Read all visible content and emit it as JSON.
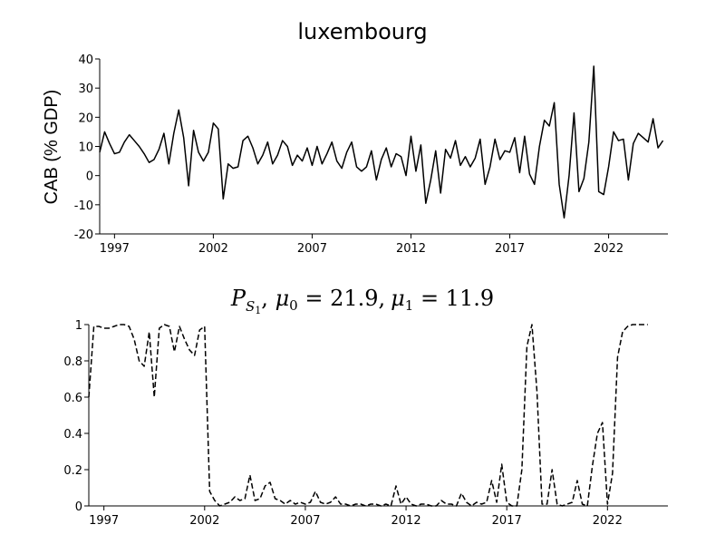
{
  "chart_data": [
    {
      "type": "line",
      "title": "luxembourg",
      "xlabel": "",
      "ylabel": "CAB (% GDP)",
      "xlim": [
        1996.25,
        2025.0
      ],
      "ylim": [
        -20,
        40
      ],
      "xticks": [
        1997,
        2002,
        2007,
        2012,
        2017,
        2022
      ],
      "yticks": [
        -20,
        -10,
        0,
        10,
        20,
        30,
        40
      ],
      "grid": false,
      "series": [
        {
          "style": "solid",
          "x_start": 1996.25,
          "x_step": 0.25,
          "values": [
            8,
            15,
            11,
            7.5,
            8,
            11.5,
            14,
            12,
            10,
            7.5,
            4.5,
            5.5,
            9,
            14.5,
            4,
            14.5,
            22.5,
            13,
            -3.5,
            15.5,
            8,
            5,
            8,
            18,
            16,
            -8,
            4,
            2.5,
            3,
            12,
            13.5,
            9.5,
            4,
            7,
            11.5,
            4,
            7,
            12,
            10,
            3.5,
            7,
            5,
            9.5,
            3.5,
            10,
            4,
            7.5,
            11.5,
            5,
            2.5,
            8,
            11.5,
            3,
            1.5,
            3,
            8.5,
            -1.5,
            5.5,
            9.5,
            3,
            7.5,
            6.5,
            0,
            13.5,
            1.5,
            10.5,
            -9.5,
            -1.5,
            8.5,
            -6,
            9,
            6,
            12,
            3.5,
            6.5,
            3,
            6,
            12.5,
            -3,
            3,
            12.5,
            5.5,
            8.5,
            8,
            13,
            1,
            13.5,
            0.5,
            -3,
            10,
            19,
            17,
            25,
            -3,
            -14.5,
            0,
            21.5,
            -5.5,
            -1,
            11.5,
            37.5,
            -5.5,
            -6.5,
            3,
            15,
            12,
            12.5,
            -1.5,
            11,
            14.5,
            13,
            11.5,
            19.5,
            9.5,
            12
          ]
        }
      ]
    },
    {
      "type": "line",
      "title": "P_{S_1}, μ_0 = 21.9, μ_1 = 11.9",
      "title_parts": {
        "p": "P",
        "sub_s": "S",
        "sub_1": "1",
        "mu0_sym": "μ",
        "mu0_sub": "0",
        "mu0_val": " = 21.9,",
        "mu1_sym": "μ",
        "mu1_sub": "1",
        "mu1_val": " = 11.9"
      },
      "xlabel": "",
      "ylabel": "",
      "xlim": [
        1996.25,
        2025.0
      ],
      "ylim": [
        0,
        1
      ],
      "xticks": [
        1997,
        2002,
        2007,
        2012,
        2017,
        2022
      ],
      "yticks": [
        0,
        0.2,
        0.4,
        0.6,
        0.8,
        1
      ],
      "ytick_labels": [
        "0",
        "0.2",
        "0.4",
        "0.6",
        "0.8",
        "1"
      ],
      "grid": false,
      "series": [
        {
          "style": "dashed",
          "x_start": 1996.25,
          "x_step": 0.25,
          "values": [
            0.6,
            0.99,
            0.99,
            0.98,
            0.98,
            0.99,
            1.0,
            1.0,
            0.99,
            0.92,
            0.8,
            0.77,
            0.96,
            0.6,
            0.98,
            1.0,
            0.99,
            0.85,
            0.99,
            0.92,
            0.86,
            0.83,
            0.97,
            0.99,
            0.08,
            0.03,
            0.0,
            0.01,
            0.02,
            0.05,
            0.03,
            0.04,
            0.17,
            0.03,
            0.04,
            0.11,
            0.13,
            0.04,
            0.03,
            0.01,
            0.03,
            0.01,
            0.02,
            0.01,
            0.02,
            0.08,
            0.02,
            0.01,
            0.02,
            0.05,
            0.01,
            0.01,
            0.0,
            0.01,
            0.01,
            0.0,
            0.01,
            0.01,
            0.0,
            0.01,
            0.0,
            0.11,
            0.01,
            0.05,
            0.01,
            0.0,
            0.01,
            0.01,
            0.0,
            0.0,
            0.03,
            0.01,
            0.01,
            0.0,
            0.07,
            0.02,
            0.0,
            0.02,
            0.01,
            0.02,
            0.14,
            0.02,
            0.23,
            0.02,
            0.0,
            0.0,
            0.2,
            0.88,
            1.0,
            0.63,
            0.01,
            0.01,
            0.2,
            0.01,
            0.0,
            0.01,
            0.02,
            0.14,
            0.01,
            0.0,
            0.22,
            0.4,
            0.46,
            0.01,
            0.18,
            0.82,
            0.96,
            0.99,
            1.0,
            1.0,
            1.0,
            1.0
          ]
        }
      ]
    }
  ]
}
